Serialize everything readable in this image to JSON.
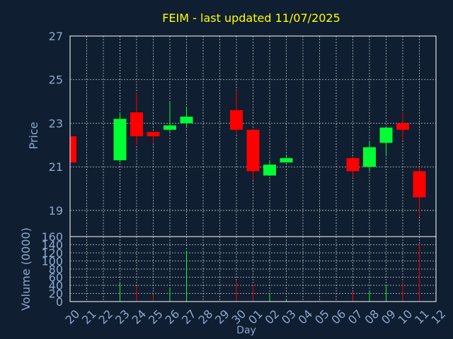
{
  "chart_data": {
    "type": "candlestick",
    "title": "FEIM - last updated 11/07/2025",
    "xlabel": "Day",
    "price_panel": {
      "ylabel": "Price",
      "ylim": [
        17.8,
        27
      ],
      "yticks": [
        19,
        21,
        23,
        25,
        27
      ],
      "grid": true
    },
    "volume_panel": {
      "ylabel": "Volume (0000)",
      "ylim": [
        0,
        160
      ],
      "yticks": [
        0,
        20,
        40,
        60,
        80,
        100,
        120,
        140,
        160
      ],
      "grid": true
    },
    "x_tick_labels": [
      "20",
      "21",
      "22",
      "23",
      "24",
      "25",
      "26",
      "27",
      "28",
      "29",
      "30",
      "01",
      "02",
      "03",
      "04",
      "05",
      "06",
      "07",
      "08",
      "09",
      "10",
      "11",
      "12"
    ],
    "candles": [
      {
        "day": "20",
        "open": 22.4,
        "high": 22.4,
        "low": 21.2,
        "close": 21.2,
        "volume": 0
      },
      {
        "day": "23",
        "open": 21.3,
        "high": 23.5,
        "low": 21.2,
        "close": 23.2,
        "volume": 45
      },
      {
        "day": "24",
        "open": 23.5,
        "high": 24.4,
        "low": 22.0,
        "close": 22.4,
        "volume": 38
      },
      {
        "day": "25",
        "open": 22.6,
        "high": 22.6,
        "low": 22.1,
        "close": 22.4,
        "volume": 18
      },
      {
        "day": "26",
        "open": 22.7,
        "high": 24.0,
        "low": 22.6,
        "close": 22.9,
        "volume": 35
      },
      {
        "day": "27",
        "open": 23.0,
        "high": 23.7,
        "low": 22.8,
        "close": 23.3,
        "volume": 125
      },
      {
        "day": "30",
        "open": 23.6,
        "high": 24.5,
        "low": 22.5,
        "close": 22.7,
        "volume": 52
      },
      {
        "day": "01",
        "open": 22.7,
        "high": 22.7,
        "low": 20.4,
        "close": 20.8,
        "volume": 42
      },
      {
        "day": "02",
        "open": 20.6,
        "high": 21.3,
        "low": 20.6,
        "close": 21.1,
        "volume": 20
      },
      {
        "day": "03",
        "open": 21.2,
        "high": 21.5,
        "low": 21.2,
        "close": 21.4,
        "volume": 5
      },
      {
        "day": "07",
        "open": 21.4,
        "high": 21.4,
        "low": 20.5,
        "close": 20.8,
        "volume": 25
      },
      {
        "day": "08",
        "open": 21.0,
        "high": 22.2,
        "low": 20.8,
        "close": 21.9,
        "volume": 28
      },
      {
        "day": "09",
        "open": 22.1,
        "high": 22.8,
        "low": 21.5,
        "close": 22.8,
        "volume": 42
      },
      {
        "day": "10",
        "open": 23.0,
        "high": 23.5,
        "low": 22.2,
        "close": 22.7,
        "volume": 50
      },
      {
        "day": "11",
        "open": 20.8,
        "high": 21.0,
        "low": 18.7,
        "close": 19.6,
        "volume": 143
      }
    ]
  },
  "colors": {
    "background": "#0f1e30",
    "title": "#ffff00",
    "axis_label": "#8ca8cf",
    "tick_label": "#8ca8cf",
    "grid": "#c8c8c8",
    "up": "#00ff33",
    "down": "#ff0000"
  }
}
